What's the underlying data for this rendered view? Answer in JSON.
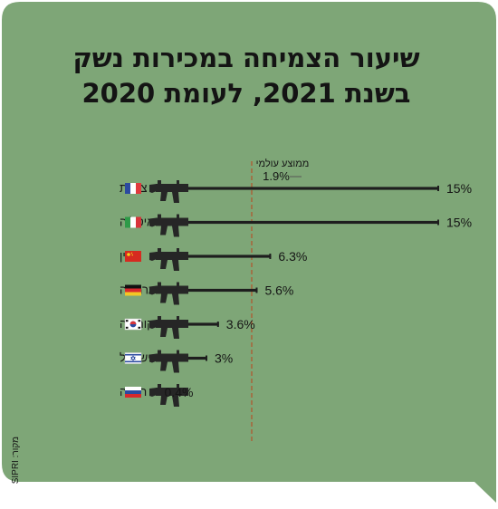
{
  "title_lines": [
    "שיעור הצמיחה במכירות נשק",
    "בשנת 2021, לעומת 2020"
  ],
  "source": "מקור: SIPRI",
  "colors": {
    "background": "#7ea677",
    "bar": "#1e1e1e",
    "average_line": "#b4532a",
    "text": "#151515"
  },
  "chart_data": {
    "type": "bar",
    "orientation": "horizontal",
    "title": "שיעור הצמיחה במכירות נשק בשנת 2021, לעומת 2020",
    "categories": [
      "צרפת",
      "איטליה",
      "סין",
      "גרמניה",
      "דרום קוריאה",
      "ישראל",
      "רוסיה"
    ],
    "values": [
      15,
      15,
      6.3,
      5.6,
      3.6,
      3,
      0.4
    ],
    "value_labels": [
      "15%",
      "15%",
      "6.3%",
      "5.6%",
      "3.6%",
      "3%",
      "0.4%"
    ],
    "flags": [
      "flag-france-icon",
      "flag-italy-icon",
      "flag-china-icon",
      "flag-germany-icon",
      "flag-south-korea-icon",
      "flag-israel-icon",
      "flag-russia-icon"
    ],
    "bar_icon": "rifle-icon",
    "reference_line": {
      "label": "ממוצע עולמי",
      "value": 1.9,
      "value_label": "1.9%"
    },
    "grid": false,
    "legend": "none"
  }
}
